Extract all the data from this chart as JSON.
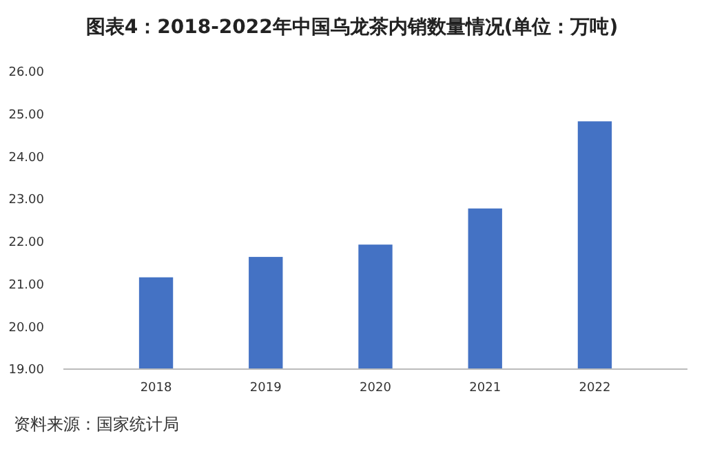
{
  "chart_data": {
    "type": "bar",
    "title": "图表4：2018-2022年中国乌龙茶内销数量情况(单位：万吨)",
    "categories": [
      "2018",
      "2019",
      "2020",
      "2021",
      "2022"
    ],
    "values": [
      21.16,
      21.64,
      21.93,
      22.78,
      24.83
    ],
    "color": "#4472c4",
    "ylim": [
      19,
      26
    ],
    "yticks": [
      {
        "value": 19,
        "label": "19.00"
      },
      {
        "value": 20,
        "label": "20.00"
      },
      {
        "value": 21,
        "label": "21.00"
      },
      {
        "value": 22,
        "label": "22.00"
      },
      {
        "value": 23,
        "label": "23.00"
      },
      {
        "value": 24,
        "label": "24.00"
      },
      {
        "value": 25,
        "label": "25.00"
      },
      {
        "value": 26,
        "label": "26.00"
      }
    ],
    "grid": false,
    "annotations": [
      "资料来源：国家统计局"
    ]
  }
}
